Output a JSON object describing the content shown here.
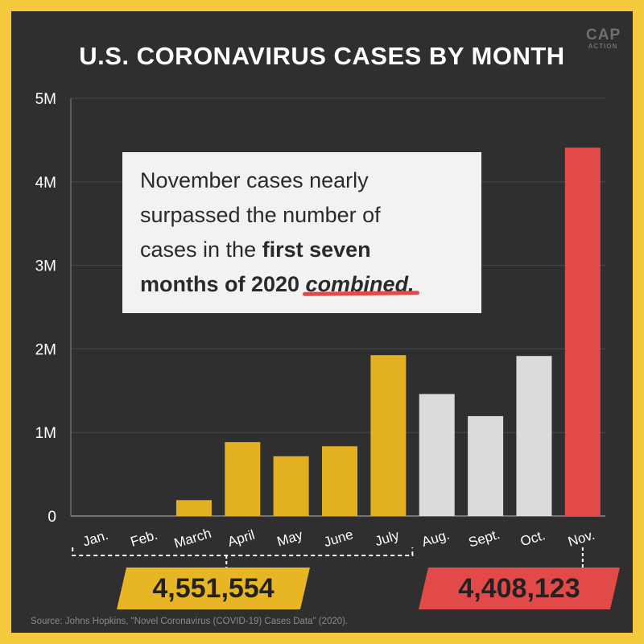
{
  "title": "U.S. CORONAVIRUS CASES BY MONTH",
  "logo": {
    "line1": "CAP",
    "line2": "ACTION"
  },
  "annotation": {
    "line1": "November cases nearly",
    "line2": "surpassed the number of",
    "line3_plain": "cases in the ",
    "line3_bold": "first seven",
    "line4_bold": "months of 2020 ",
    "line4_emph": "combined."
  },
  "totals": {
    "first_seven_months": "4,551,554",
    "november": "4,408,123"
  },
  "source": "Source: Johns Hopkins, \"Novel Coronavirus (COVID-19) Cases Data\" (2020).",
  "colors": {
    "first_seven": "#e3b021",
    "mid": "#dcdcdc",
    "november": "#e24a49",
    "background": "#2f2f2f",
    "frame": "#f5c93c"
  },
  "chart_data": {
    "type": "bar",
    "title": "U.S. CORONAVIRUS CASES BY MONTH",
    "categories": [
      "Jan.",
      "Feb.",
      "March",
      "April",
      "May",
      "June",
      "July",
      "Aug.",
      "Sept.",
      "Oct.",
      "Nov."
    ],
    "values": [
      7,
      40,
      190000,
      885000,
      715000,
      835000,
      1925000,
      1460000,
      1195000,
      1915000,
      4408123
    ],
    "bar_groups": [
      "first_seven",
      "first_seven",
      "first_seven",
      "first_seven",
      "first_seven",
      "first_seven",
      "first_seven",
      "mid",
      "mid",
      "mid",
      "november"
    ],
    "ylim": [
      0,
      5000000
    ],
    "yticks": [
      0,
      1000000,
      2000000,
      3000000,
      4000000,
      5000000
    ],
    "ytick_labels": [
      "0",
      "1M",
      "2M",
      "3M",
      "4M",
      "5M"
    ],
    "xlabel": "",
    "ylabel": "",
    "grid": true
  }
}
